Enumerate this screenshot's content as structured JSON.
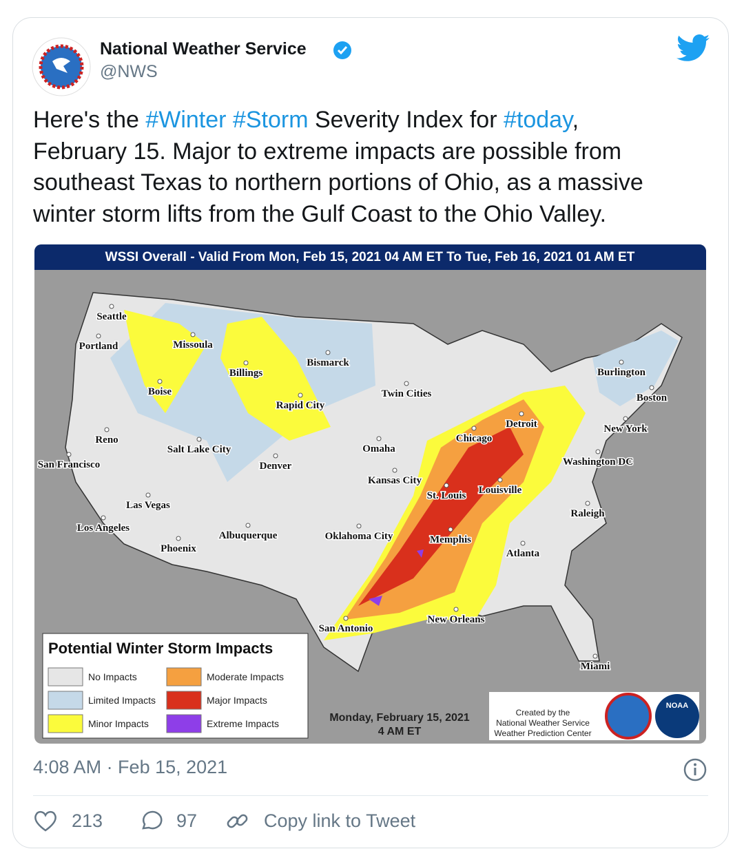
{
  "author": {
    "name": "National Weather Service",
    "handle": "@NWS"
  },
  "tweet": {
    "segments": [
      "Here's the ",
      "#Winter",
      "#Storm",
      " Severity Index for ",
      "#today",
      ",",
      "February 15. Major to extreme impacts are possible from",
      "southeast Texas to northern portions of Ohio, as a massive",
      "winter storm lifts from the Gulf Coast to the Ohio Valley."
    ]
  },
  "map": {
    "title": "WSSI Overall - Valid From Mon, Feb 15, 2021 04 AM  ET To Tue, Feb 16, 2021 01 AM ET",
    "cities": [
      "Seattle",
      "Portland",
      "Missoula",
      "Boise",
      "Billings",
      "Bismarck",
      "Rapid City",
      "Twin Cities",
      "Burlington",
      "Boston",
      "Reno",
      "San Francisco",
      "Salt Lake City",
      "Denver",
      "Omaha",
      "Chicago",
      "Detroit",
      "New York",
      "Washington DC",
      "Kansas City",
      "St. Louis",
      "Louisville",
      "Las Vegas",
      "Raleigh",
      "Los Angeles",
      "Albuquerque",
      "Oklahoma City",
      "Memphis",
      "Phoenix",
      "Atlanta",
      "San Antonio",
      "New Orleans",
      "Miami"
    ],
    "legend": {
      "title": "Potential Winter Storm Impacts",
      "items": [
        {
          "label": "No Impacts",
          "color": "#e6e6e6"
        },
        {
          "label": "Limited Impacts",
          "color": "#c5d9e8"
        },
        {
          "label": "Minor Impacts",
          "color": "#fbfb3c"
        },
        {
          "label": "Moderate Impacts",
          "color": "#f5a040"
        },
        {
          "label": "Major Impacts",
          "color": "#d9301c"
        },
        {
          "label": "Extreme Impacts",
          "color": "#8e3ee8"
        }
      ]
    },
    "date": [
      "Monday, February 15, 2021",
      "4 AM ET"
    ],
    "credit": [
      "Created by the",
      "National Weather Service",
      "Weather Prediction Center"
    ],
    "logo": "NOAA"
  },
  "timestamp": "4:08 AM · Feb 15, 2021",
  "actions": {
    "likes": "213",
    "replies": "97",
    "copy_link": "Copy link to Tweet"
  }
}
